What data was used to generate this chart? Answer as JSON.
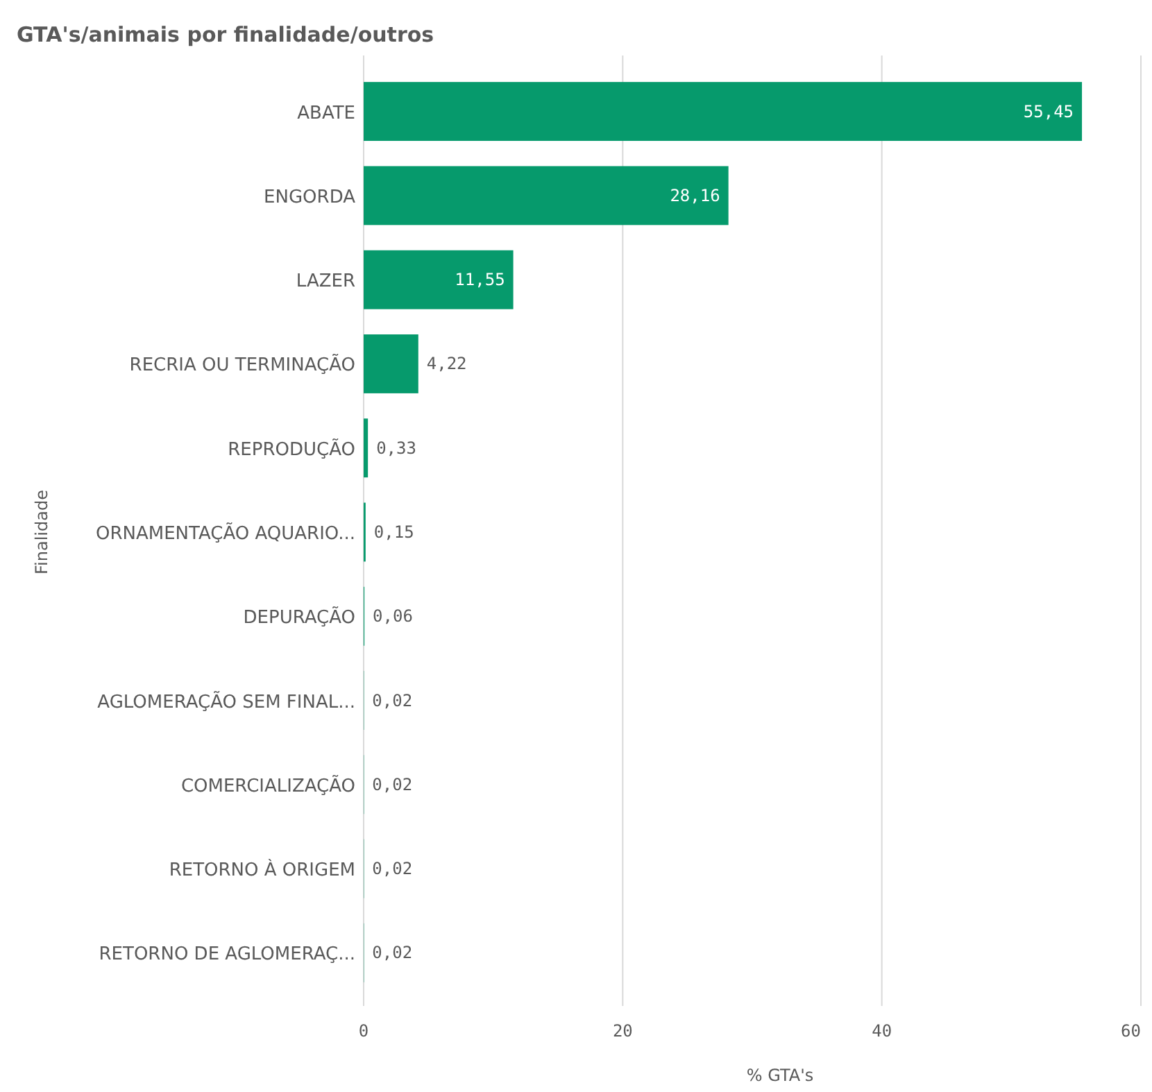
{
  "chart_data": {
    "type": "bar",
    "orientation": "horizontal",
    "title": "GTA's/animais por finalidade/outros",
    "xlabel": "% GTA's",
    "ylabel": "Finalidade",
    "categories": [
      "ABATE",
      "ENGORDA",
      "LAZER",
      "RECRIA OU TERMINAÇÃO",
      "REPRODUÇÃO",
      "ORNAMENTAÇÃO AQUARIO...",
      "DEPURAÇÃO",
      "AGLOMERAÇÃO SEM FINAL...",
      "COMERCIALIZAÇÃO",
      "RETORNO À ORIGEM",
      "RETORNO DE AGLOMERAÇ..."
    ],
    "values": [
      55.45,
      28.16,
      11.55,
      4.22,
      0.33,
      0.15,
      0.06,
      0.02,
      0.02,
      0.02,
      0.02
    ],
    "value_labels": [
      "55,45",
      "28,16",
      "11,55",
      "4,22",
      "0,33",
      "0,15",
      "0,06",
      "0,02",
      "0,02",
      "0,02",
      "0,02"
    ],
    "color": "#069a6c",
    "xlim": [
      0,
      60
    ],
    "xticks": [
      0,
      20,
      40,
      60
    ],
    "grid": "x"
  }
}
